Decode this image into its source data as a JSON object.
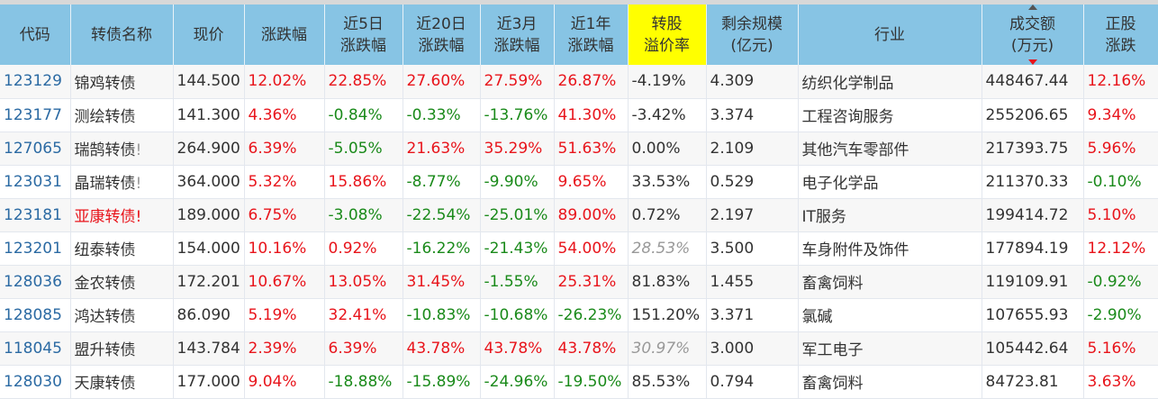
{
  "headers": [
    {
      "l1": "代码",
      "l2": ""
    },
    {
      "l1": "转债名称",
      "l2": ""
    },
    {
      "l1": "现价",
      "l2": ""
    },
    {
      "l1": "涨跌幅",
      "l2": ""
    },
    {
      "l1": "近5日",
      "l2": "涨跌幅"
    },
    {
      "l1": "近20日",
      "l2": "涨跌幅"
    },
    {
      "l1": "近3月",
      "l2": "涨跌幅"
    },
    {
      "l1": "近1年",
      "l2": "涨跌幅"
    },
    {
      "l1": "转股",
      "l2": "溢价率"
    },
    {
      "l1": "剩余规模",
      "l2": "(亿元)"
    },
    {
      "l1": "行业",
      "l2": ""
    },
    {
      "l1": "成交额",
      "l2": "(万元)"
    },
    {
      "l1": "正股",
      "l2": "涨跌"
    }
  ],
  "sort": {
    "column": "成交额",
    "direction": "desc"
  },
  "colors": {
    "up": "#e8141b",
    "down": "#1a8a1a",
    "header": "#87c4e4",
    "highlight": "#ffff00"
  },
  "rows": [
    {
      "code": "123129",
      "name": "锦鸡转债",
      "flag": "",
      "price": "144.500",
      "chg": "12.02%",
      "d5": "22.85%",
      "d20": "27.60%",
      "m3": "27.59%",
      "y1": "26.87%",
      "prem": "-4.19%",
      "size": "4.309",
      "industry": "纺织化学制品",
      "vol": "448467.44",
      "stk": "12.16%"
    },
    {
      "code": "123177",
      "name": "测绘转债",
      "flag": "",
      "price": "141.300",
      "chg": "4.36%",
      "d5": "-0.84%",
      "d20": "-0.33%",
      "m3": "-13.76%",
      "y1": "41.30%",
      "prem": "-3.42%",
      "size": "3.374",
      "industry": "工程咨询服务",
      "vol": "255206.65",
      "stk": "9.34%"
    },
    {
      "code": "127065",
      "name": "瑞鹄转债",
      "flag": "!",
      "price": "264.900",
      "chg": "6.39%",
      "d5": "-5.05%",
      "d20": "21.63%",
      "m3": "35.29%",
      "y1": "51.63%",
      "prem": "0.00%",
      "size": "2.109",
      "industry": "其他汽车零部件",
      "vol": "217393.75",
      "stk": "5.96%"
    },
    {
      "code": "123031",
      "name": "晶瑞转债",
      "flag": "!",
      "price": "364.000",
      "chg": "5.32%",
      "d5": "15.86%",
      "d20": "-8.77%",
      "m3": "-9.90%",
      "y1": "9.65%",
      "prem": "33.53%",
      "size": "0.529",
      "industry": "电子化学品",
      "vol": "211370.33",
      "stk": "-0.10%"
    },
    {
      "code": "123181",
      "name": "亚康转债",
      "flag": "!",
      "price": "189.000",
      "chg": "6.75%",
      "d5": "-3.08%",
      "d20": "-22.54%",
      "m3": "-25.01%",
      "y1": "89.00%",
      "prem": "0.72%",
      "size": "2.197",
      "industry": "IT服务",
      "vol": "199414.72",
      "stk": "5.10%",
      "name_red": true
    },
    {
      "code": "123201",
      "name": "纽泰转债",
      "flag": "",
      "price": "154.000",
      "chg": "10.16%",
      "d5": "0.92%",
      "d20": "-16.22%",
      "m3": "-21.43%",
      "y1": "54.00%",
      "prem": "28.53%",
      "size": "3.500",
      "industry": "车身附件及饰件",
      "vol": "177894.19",
      "stk": "12.12%",
      "prem_italic": true
    },
    {
      "code": "128036",
      "name": "金农转债",
      "flag": "",
      "price": "172.201",
      "chg": "10.67%",
      "d5": "13.05%",
      "d20": "31.45%",
      "m3": "-1.55%",
      "y1": "25.31%",
      "prem": "81.83%",
      "size": "1.455",
      "industry": "畜禽饲料",
      "vol": "119109.91",
      "stk": "-0.92%"
    },
    {
      "code": "128085",
      "name": "鸿达转债",
      "flag": "",
      "price": "86.090",
      "chg": "5.19%",
      "d5": "32.41%",
      "d20": "-10.83%",
      "m3": "-10.68%",
      "y1": "-26.23%",
      "prem": "151.20%",
      "size": "3.371",
      "industry": "氯碱",
      "vol": "107655.93",
      "stk": "-2.90%"
    },
    {
      "code": "118045",
      "name": "盟升转债",
      "flag": "",
      "price": "143.784",
      "chg": "2.39%",
      "d5": "6.39%",
      "d20": "43.78%",
      "m3": "43.78%",
      "y1": "43.78%",
      "prem": "30.97%",
      "size": "3.000",
      "industry": "军工电子",
      "vol": "105442.64",
      "stk": "5.16%",
      "prem_italic": true
    },
    {
      "code": "128030",
      "name": "天康转债",
      "flag": "",
      "price": "177.000",
      "chg": "9.04%",
      "d5": "-18.88%",
      "d20": "-15.89%",
      "m3": "-24.96%",
      "y1": "-19.50%",
      "prem": "85.53%",
      "size": "0.794",
      "industry": "畜禽饲料",
      "vol": "84723.81",
      "stk": "3.63%"
    }
  ]
}
